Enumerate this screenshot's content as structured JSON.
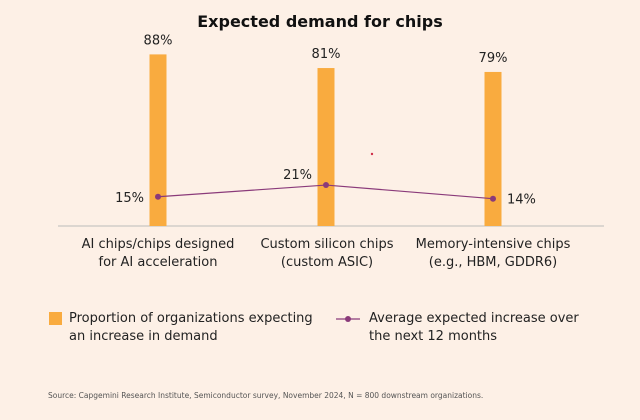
{
  "chart_data": {
    "type": "bar",
    "title": "Expected demand for chips",
    "categories": [
      [
        "AI chips/chips designed",
        "for AI acceleration"
      ],
      [
        "Custom silicon chips",
        "(custom ASIC)"
      ],
      [
        "Memory-intensive chips",
        "(e.g., HBM, GDDR6)"
      ]
    ],
    "series": [
      {
        "name": "Proportion of organizations expecting an increase in demand",
        "type": "bar",
        "values": [
          88,
          81,
          79
        ],
        "labels": [
          "88%",
          "81%",
          "79%"
        ],
        "color": "#f9ab3f"
      },
      {
        "name": "Average expected increase over the next 12 months",
        "type": "line",
        "values": [
          15,
          21,
          14
        ],
        "labels": [
          "15%",
          "21%",
          "14%"
        ],
        "color": "#8a3a7a"
      }
    ],
    "ylim": [
      0,
      100
    ],
    "grid": false,
    "legend_position": "bottom"
  },
  "legend": {
    "bar_label_lines": [
      "Proportion of organizations expecting",
      "an increase in demand"
    ],
    "line_label_lines": [
      "Average expected increase over",
      "the next 12 months"
    ]
  },
  "source": "Source: Capgemini Research Institute, Semiconductor survey, November 2024, N = 800 downstream organizations.",
  "colors": {
    "background": "#fdf0e6",
    "bar": "#f9ab3f",
    "line": "#8a3a7a",
    "baseline": "#bbbbbb"
  }
}
